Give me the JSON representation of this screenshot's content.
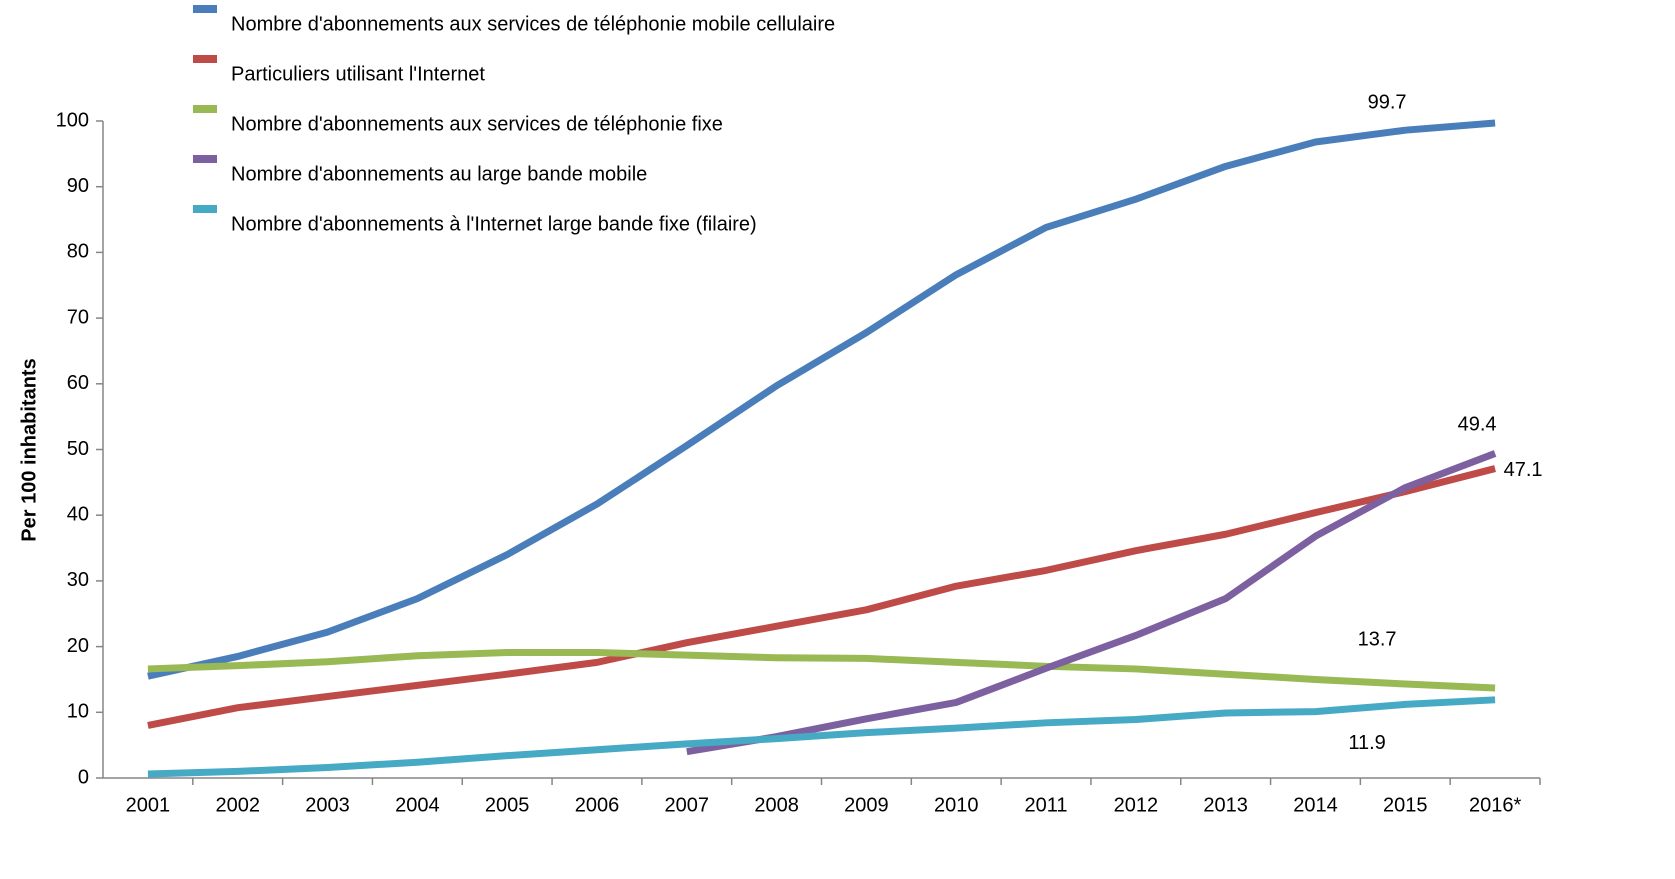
{
  "chart_data": {
    "type": "line",
    "y_label": "Per 100 inhabitants",
    "categories": [
      "2001",
      "2002",
      "2003",
      "2004",
      "2005",
      "2006",
      "2007",
      "2008",
      "2009",
      "2010",
      "2011",
      "2012",
      "2013",
      "2014",
      "2015",
      "2016*"
    ],
    "ylim": [
      0,
      100
    ],
    "yticks": [
      0,
      10,
      20,
      30,
      40,
      50,
      60,
      70,
      80,
      90,
      100
    ],
    "grid": false,
    "legend": "top-left",
    "series": [
      {
        "name": "Nombre d'abonnements aux services de téléphonie mobile cellulaire",
        "color": "#4a7ebb",
        "values": [
          15.5,
          18.5,
          22.2,
          27.3,
          34.0,
          41.7,
          50.6,
          59.7,
          67.8,
          76.6,
          83.8,
          88.1,
          93.1,
          96.8,
          98.6,
          99.7
        ]
      },
      {
        "name": "Particuliers utilisant l'Internet",
        "color": "#be4b48",
        "values": [
          8.0,
          10.7,
          12.4,
          14.1,
          15.8,
          17.6,
          20.6,
          23.1,
          25.6,
          29.2,
          31.6,
          34.6,
          37.1,
          40.4,
          43.6,
          47.1
        ]
      },
      {
        "name": "Nombre d'abonnements aux services de téléphonie fixe",
        "color": "#98b954",
        "values": [
          16.6,
          17.1,
          17.7,
          18.6,
          19.1,
          19.1,
          18.7,
          18.3,
          18.2,
          17.6,
          17.0,
          16.6,
          15.8,
          15.0,
          14.3,
          13.7
        ]
      },
      {
        "name": "Nombre d'abonnements au large bande mobile",
        "color": "#7d60a0",
        "values": [
          null,
          null,
          null,
          null,
          null,
          null,
          4.0,
          6.3,
          9.0,
          11.5,
          16.7,
          21.7,
          27.3,
          36.8,
          44.2,
          49.4
        ]
      },
      {
        "name": "Nombre d'abonnements à l'Internet large bande fixe (filaire)",
        "color": "#46aac5",
        "values": [
          0.6,
          1.0,
          1.6,
          2.4,
          3.4,
          4.3,
          5.2,
          6.0,
          6.9,
          7.6,
          8.4,
          8.9,
          9.9,
          10.1,
          11.2,
          11.9
        ]
      }
    ]
  }
}
